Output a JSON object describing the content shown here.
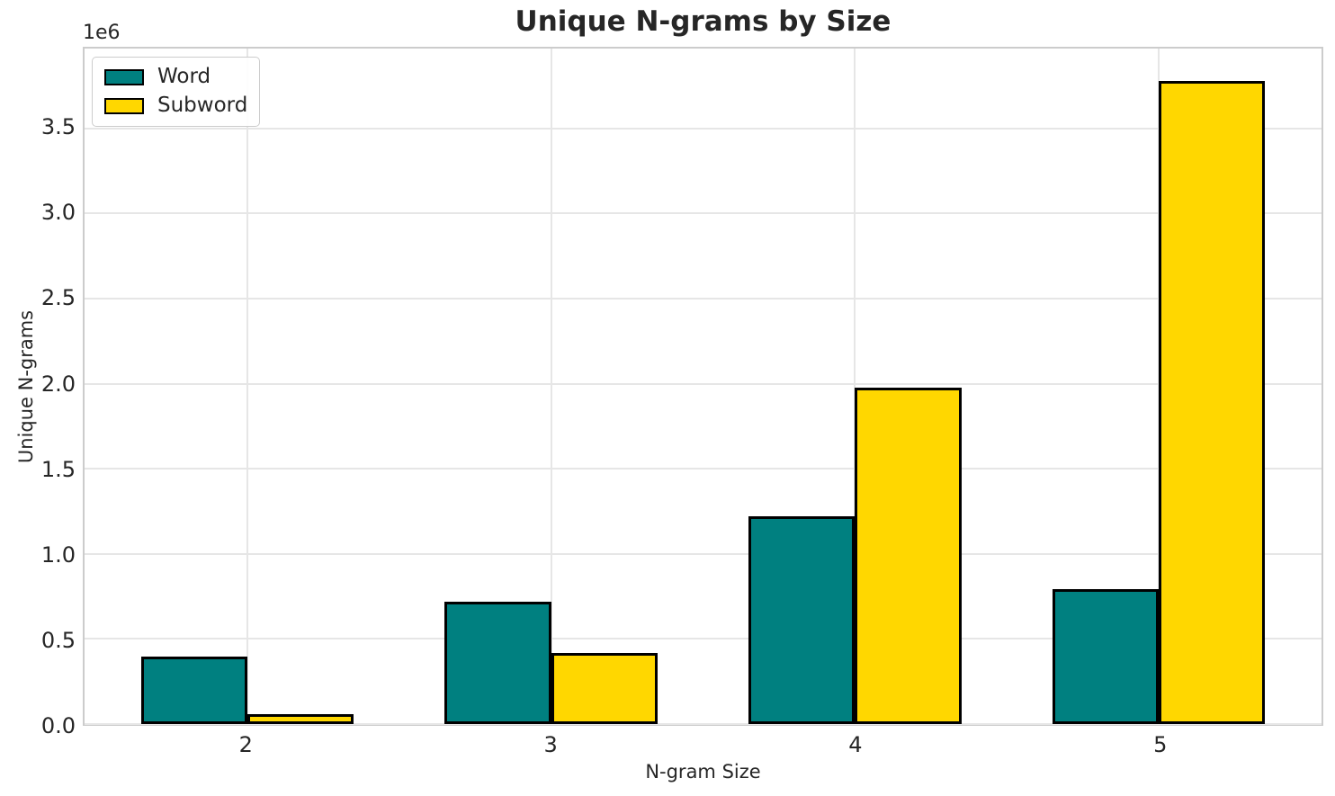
{
  "figure": {
    "background": "#ffffff",
    "text_color": "#262626",
    "grid_color": "#e6e6e6",
    "spine_color": "#cccccc"
  },
  "chart_data": {
    "type": "bar",
    "title": "Unique N-grams by Size",
    "xlabel": "N-gram Size",
    "ylabel": "Unique N-grams",
    "y_offset_label": "1e6",
    "categories": [
      "2",
      "3",
      "4",
      "5"
    ],
    "series": [
      {
        "name": "Word",
        "color": "#008080",
        "values": [
          395000,
          720000,
          1220000,
          795000
        ]
      },
      {
        "name": "Subword",
        "color": "#FFD700",
        "values": [
          60000,
          420000,
          1975000,
          3780000
        ]
      }
    ],
    "bar_edge_color": "#000000",
    "bar_width": 0.35,
    "grouping": "side-by-side",
    "xlim": [
      -0.535,
      3.535
    ],
    "ylim": [
      0,
      3969000
    ],
    "yticks": [
      0,
      500000,
      1000000,
      1500000,
      2000000,
      2500000,
      3000000,
      3500000
    ],
    "ytick_labels": [
      "0.0",
      "0.5",
      "1.0",
      "1.5",
      "2.0",
      "2.5",
      "3.0",
      "3.5"
    ],
    "grid": true,
    "legend": {
      "position": "upper left",
      "entries": [
        "Word",
        "Subword"
      ]
    }
  }
}
